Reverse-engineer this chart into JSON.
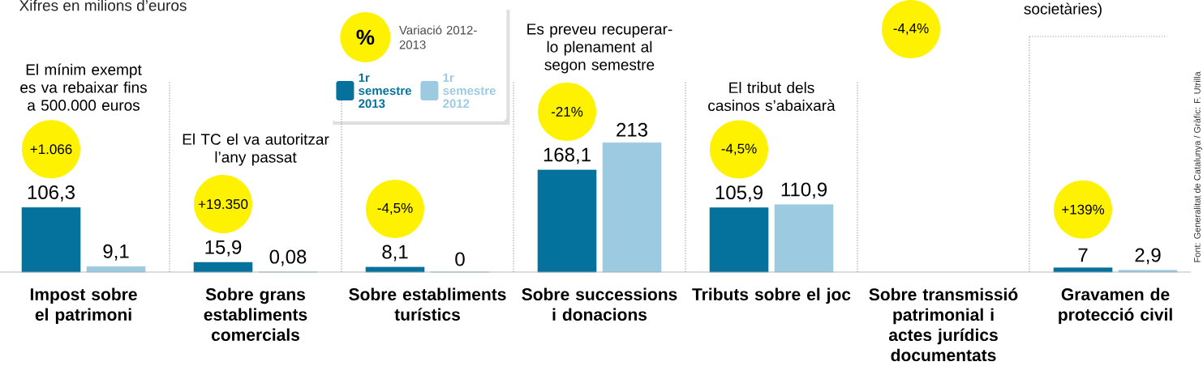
{
  "chart_data": {
    "type": "bar",
    "subtitle": "Xifres en milions d’euros",
    "categories": [
      "Impost sobre el patrimoni",
      "Sobre grans establiments comercials",
      "Sobre establiments turístics",
      "Sobre successions i donacions",
      "Tributs sobre el joc",
      "Sobre transmissió patrimonial i actes jurídics documentats",
      "Gravamen de protecció civil"
    ],
    "series": [
      {
        "name": "1r semestre 2013",
        "color": "#05729e",
        "values": [
          106.3,
          15.9,
          8.1,
          168.1,
          105.9,
          null,
          7
        ],
        "value_labels": [
          "106,3",
          "15,9",
          "8,1",
          "168,1",
          "105,9",
          null,
          "7"
        ]
      },
      {
        "name": "1r semestre 2012",
        "color": "#9ccae1",
        "values": [
          9.1,
          0.08,
          0,
          213,
          110.9,
          null,
          2.9
        ],
        "value_labels": [
          "9,1",
          "0,08",
          "0",
          "213",
          "110,9",
          null,
          "2,9"
        ]
      }
    ],
    "legend": "top",
    "annotations": [
      "+1.066",
      "+19.350",
      "-4,5%",
      "-21%",
      "-4,5%",
      "-4,4%",
      "+139%",
      "El mínim exempt es va rebaixar fins a 500.000 euros",
      "El TC el va autoritzar l’any passat",
      "Es preveu recuperar-lo plenament al segon semestre",
      "El tribut dels casinos s’abaixarà",
      "%",
      "Variació 2012-2013",
      "societàries)",
      "Font: Generalitat de Catalunya / Gràfic: F. Utrilla"
    ]
  }
}
